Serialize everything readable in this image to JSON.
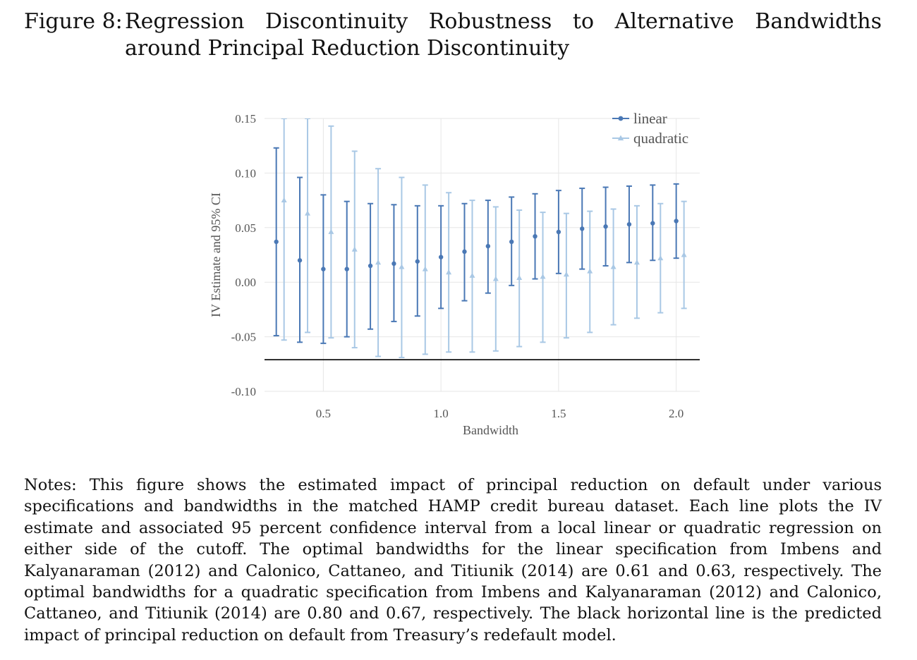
{
  "caption": {
    "label": "Figure 8:",
    "text": "Regression Discontinuity Robustness to Alternative Bandwidths around Principal Reduction Discontinuity"
  },
  "chart_data": {
    "type": "scatter",
    "title": "",
    "xlabel": "Bandwidth",
    "ylabel": "IV Estimate and 95% CI",
    "xlim": [
      0.25,
      2.1
    ],
    "ylim": [
      -0.1,
      0.15
    ],
    "x_ticks": [
      "0.5",
      "1.0",
      "1.5",
      "2.0"
    ],
    "y_ticks": [
      "0.15",
      "0.10",
      "0.05",
      "0.00",
      "-0.05",
      "-0.10"
    ],
    "grid": true,
    "legend_position": "top-right",
    "reference_line": -0.071,
    "series": [
      {
        "name": "linear",
        "color": "#4a78b5",
        "marker": "circle",
        "x": [
          0.3,
          0.4,
          0.5,
          0.6,
          0.7,
          0.8,
          0.9,
          1.0,
          1.1,
          1.2,
          1.3,
          1.4,
          1.5,
          1.6,
          1.7,
          1.8,
          1.9,
          2.0
        ],
        "estimate": [
          0.037,
          0.02,
          0.012,
          0.012,
          0.015,
          0.017,
          0.019,
          0.023,
          0.028,
          0.033,
          0.037,
          0.042,
          0.046,
          0.049,
          0.051,
          0.053,
          0.054,
          0.056
        ],
        "ci_low": [
          -0.049,
          -0.055,
          -0.056,
          -0.05,
          -0.043,
          -0.036,
          -0.031,
          -0.024,
          -0.017,
          -0.01,
          -0.003,
          0.003,
          0.008,
          0.012,
          0.015,
          0.018,
          0.02,
          0.022
        ],
        "ci_high": [
          0.123,
          0.096,
          0.08,
          0.074,
          0.072,
          0.071,
          0.07,
          0.07,
          0.072,
          0.075,
          0.078,
          0.081,
          0.084,
          0.086,
          0.087,
          0.088,
          0.089,
          0.09
        ]
      },
      {
        "name": "quadratic",
        "color": "#a9c8e5",
        "marker": "triangle",
        "x": [
          0.3,
          0.4,
          0.5,
          0.6,
          0.7,
          0.8,
          0.9,
          1.0,
          1.1,
          1.2,
          1.3,
          1.4,
          1.5,
          1.6,
          1.7,
          1.8,
          1.9,
          2.0
        ],
        "estimate": [
          0.075,
          0.063,
          0.046,
          0.03,
          0.018,
          0.014,
          0.012,
          0.009,
          0.006,
          0.003,
          0.004,
          0.005,
          0.007,
          0.01,
          0.014,
          0.018,
          0.022,
          0.025
        ],
        "ci_low": [
          -0.053,
          -0.046,
          -0.051,
          -0.06,
          -0.068,
          -0.069,
          -0.066,
          -0.064,
          -0.064,
          -0.063,
          -0.059,
          -0.055,
          -0.051,
          -0.046,
          -0.039,
          -0.033,
          -0.028,
          -0.024
        ],
        "ci_high": [
          0.15,
          0.15,
          0.143,
          0.12,
          0.104,
          0.096,
          0.089,
          0.082,
          0.075,
          0.069,
          0.066,
          0.064,
          0.063,
          0.065,
          0.067,
          0.07,
          0.072,
          0.074
        ]
      }
    ]
  },
  "notes": "Notes: This figure shows the estimated impact of principal reduction on default under various specifications and bandwidths in the matched HAMP credit bureau dataset. Each line plots the IV estimate and associated 95 percent confidence interval from a local linear or quadratic regression on either side of the cutoff. The optimal bandwidths for the linear specification from Imbens and Kalyanaraman (2012) and Calonico, Cattaneo, and Titiunik (2014) are 0.61 and 0.63, respectively. The optimal bandwidths for a quadratic specification from Imbens and Kalyanaraman (2012) and Calonico, Cattaneo, and Titiunik (2014) are 0.80 and 0.67, respectively. The black horizontal line is the predicted impact of principal reduction on default from Treasury’s redefault model."
}
